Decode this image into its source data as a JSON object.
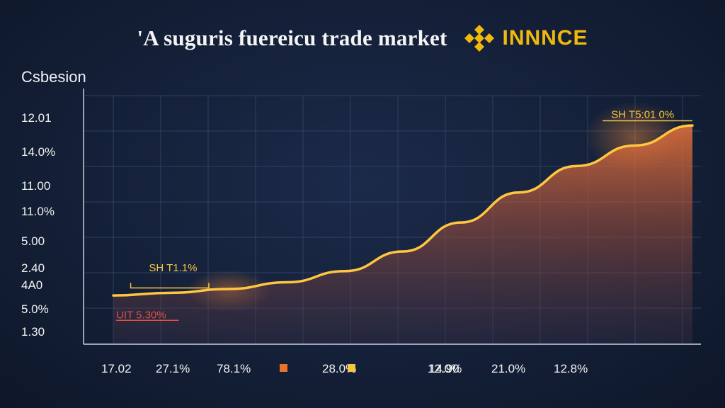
{
  "header": {
    "title": "'A suguris fuereicu trade market",
    "brand_name": "INNNCE",
    "brand_icon": "binance-diamond-icon",
    "brand_color": "#f0b90b"
  },
  "chart_data": {
    "type": "area",
    "title": "'A suguris fuereicu trade market",
    "ylabel": "Csbesion",
    "y_ticks": [
      "12.01",
      "14.0%",
      "11.00",
      "11.0%",
      "5.00",
      "2.40",
      "4A0",
      "5.0%",
      "1.30"
    ],
    "x_ticks": [
      "17.02",
      "27.1%",
      "78.1%",
      "28.0%",
      "14.90",
      "12.0%",
      "21.0%",
      "12.8%"
    ],
    "x_tick_markers": [
      null,
      null,
      null,
      "#e8732a",
      "#f5c542",
      null,
      null,
      null
    ],
    "ylim": [
      0,
      100
    ],
    "xlim": [
      0,
      100
    ],
    "series": [
      {
        "color": "#ffc640",
        "x": [
          0,
          10,
          20,
          30,
          40,
          50,
          60,
          70,
          80,
          90,
          100
        ],
        "y": [
          17.8,
          19.1,
          21.0,
          24.3,
          29.8,
          39.5,
          53.8,
          68.6,
          81.7,
          91.8,
          101.7
        ]
      }
    ],
    "annotations": [
      {
        "text": "SH T1.1%",
        "x": 2,
        "y": 29,
        "color": "#f5c542"
      },
      {
        "text": "UIT 5.30%",
        "x": 0.5,
        "y": 5,
        "color": "#e0504a"
      },
      {
        "text": "SH T5:01 0%",
        "x": 85,
        "y": 110,
        "color": "#f5c542"
      }
    ],
    "grid": true
  }
}
